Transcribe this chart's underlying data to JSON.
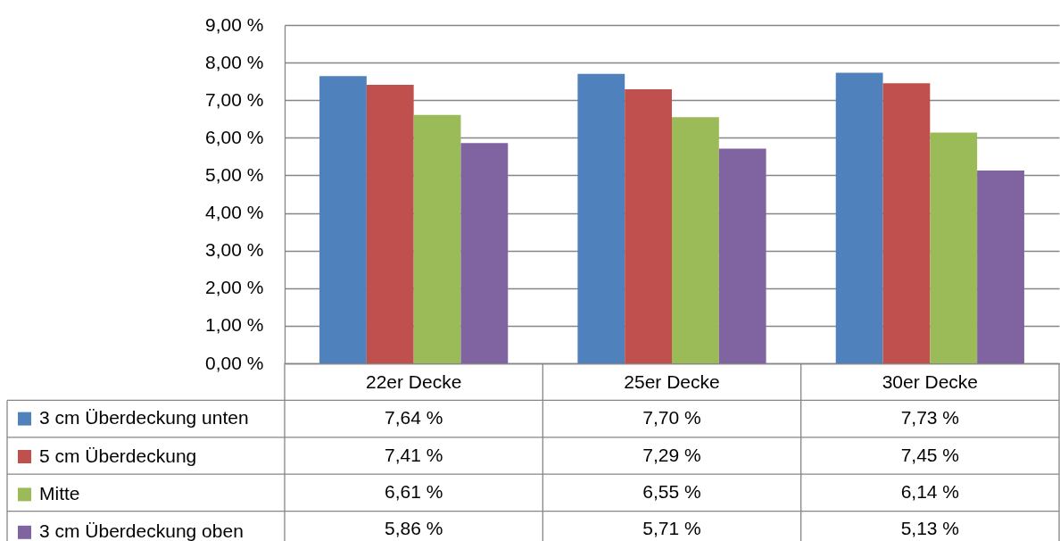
{
  "chart_data": {
    "type": "bar",
    "categories": [
      "22er Decke",
      "25er Decke",
      "30er Decke"
    ],
    "series": [
      {
        "name": "3 cm Überdeckung unten",
        "color": "#4f81bd",
        "values": [
          7.64,
          7.7,
          7.73
        ],
        "value_labels": [
          "7,64 %",
          "7,70 %",
          "7,73 %"
        ]
      },
      {
        "name": "5 cm Überdeckung",
        "color": "#c0504d",
        "values": [
          7.41,
          7.29,
          7.45
        ],
        "value_labels": [
          "7,41 %",
          "7,29 %",
          "7,45 %"
        ]
      },
      {
        "name": "Mitte",
        "color": "#9bbb59",
        "values": [
          6.61,
          6.55,
          6.14
        ],
        "value_labels": [
          "6,61 %",
          "6,55 %",
          "6,14 %"
        ]
      },
      {
        "name": "3 cm Überdeckung oben",
        "color": "#8064a2",
        "values": [
          5.86,
          5.71,
          5.13
        ],
        "value_labels": [
          "5,86 %",
          "5,71 %",
          "5,13 %"
        ]
      }
    ],
    "ylim": [
      0,
      9
    ],
    "yticks": [
      {
        "value": 0,
        "label": "0,00 %"
      },
      {
        "value": 1,
        "label": "1,00 %"
      },
      {
        "value": 2,
        "label": "2,00 %"
      },
      {
        "value": 3,
        "label": "3,00 %"
      },
      {
        "value": 4,
        "label": "4,00 %"
      },
      {
        "value": 5,
        "label": "5,00 %"
      },
      {
        "value": 6,
        "label": "6,00 %"
      },
      {
        "value": 7,
        "label": "7,00 %"
      },
      {
        "value": 8,
        "label": "8,00 %"
      },
      {
        "value": 9,
        "label": "9,00 %"
      }
    ],
    "grid": "y",
    "legend": "bottom left"
  }
}
